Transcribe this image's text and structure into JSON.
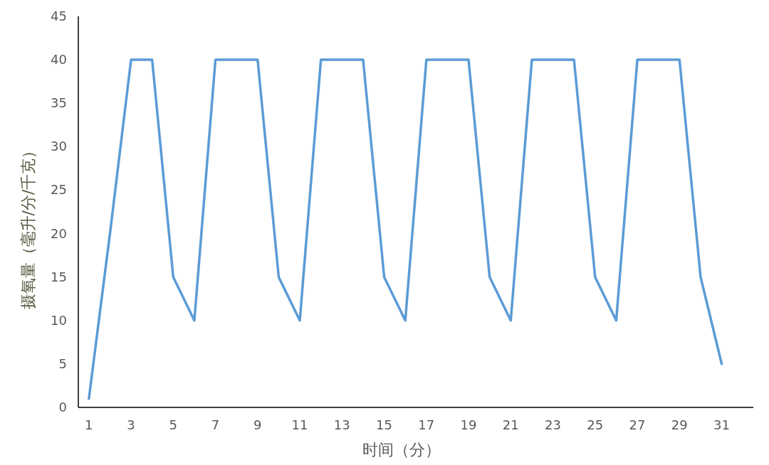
{
  "chart_data": {
    "type": "line",
    "x": [
      1,
      2,
      3,
      4,
      5,
      6,
      7,
      8,
      9,
      10,
      11,
      12,
      13,
      14,
      15,
      16,
      17,
      18,
      19,
      20,
      21,
      22,
      23,
      24,
      25,
      26,
      27,
      28,
      29,
      30,
      31
    ],
    "xlim": [
      0.5,
      32.5
    ],
    "xticks": [
      1,
      3,
      5,
      7,
      9,
      11,
      13,
      15,
      17,
      19,
      21,
      23,
      25,
      27,
      29,
      31
    ],
    "values": [
      1,
      20,
      40,
      40,
      15,
      10,
      40,
      40,
      40,
      15,
      10,
      40,
      40,
      40,
      15,
      10,
      40,
      40,
      40,
      15,
      10,
      40,
      40,
      40,
      15,
      10,
      40,
      40,
      40,
      15,
      5
    ],
    "color": "#5b9bd5",
    "ylim": [
      0,
      45
    ],
    "yticks": [
      0,
      5,
      10,
      15,
      20,
      25,
      30,
      35,
      40,
      45
    ],
    "xlabel": "时间（分）",
    "ylabel": "摄氧量（毫升/分/千克）",
    "grid": false
  }
}
